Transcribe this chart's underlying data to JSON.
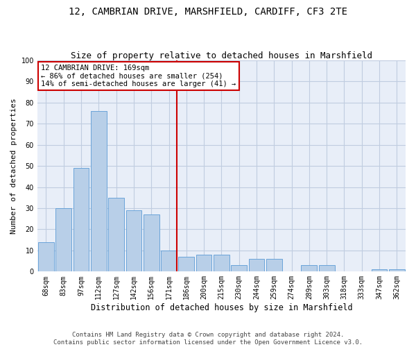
{
  "title1": "12, CAMBRIAN DRIVE, MARSHFIELD, CARDIFF, CF3 2TE",
  "title2": "Size of property relative to detached houses in Marshfield",
  "xlabel": "Distribution of detached houses by size in Marshfield",
  "ylabel": "Number of detached properties",
  "categories": [
    "68sqm",
    "83sqm",
    "97sqm",
    "112sqm",
    "127sqm",
    "142sqm",
    "156sqm",
    "171sqm",
    "186sqm",
    "200sqm",
    "215sqm",
    "230sqm",
    "244sqm",
    "259sqm",
    "274sqm",
    "289sqm",
    "303sqm",
    "318sqm",
    "333sqm",
    "347sqm",
    "362sqm"
  ],
  "values": [
    14,
    30,
    49,
    76,
    35,
    29,
    27,
    10,
    7,
    8,
    8,
    3,
    6,
    6,
    0,
    3,
    3,
    0,
    0,
    1,
    1
  ],
  "bar_color": "#b8cfe8",
  "bar_edge_color": "#5b9bd5",
  "vline_color": "#cc0000",
  "vline_x_index": 7,
  "annotation_text": "12 CAMBRIAN DRIVE: 169sqm\n← 86% of detached houses are smaller (254)\n14% of semi-detached houses are larger (41) →",
  "annotation_box_color": "#cc0000",
  "annotation_fill": "white",
  "ylim": [
    0,
    100
  ],
  "yticks": [
    0,
    10,
    20,
    30,
    40,
    50,
    60,
    70,
    80,
    90,
    100
  ],
  "footer": "Contains HM Land Registry data © Crown copyright and database right 2024.\nContains public sector information licensed under the Open Government Licence v3.0.",
  "bg_color": "#e8eef8",
  "grid_color": "#c0cce0",
  "title1_fontsize": 10,
  "title2_fontsize": 9,
  "xlabel_fontsize": 8.5,
  "ylabel_fontsize": 8,
  "tick_fontsize": 7,
  "footer_fontsize": 6.5,
  "annotation_fontsize": 7.5
}
